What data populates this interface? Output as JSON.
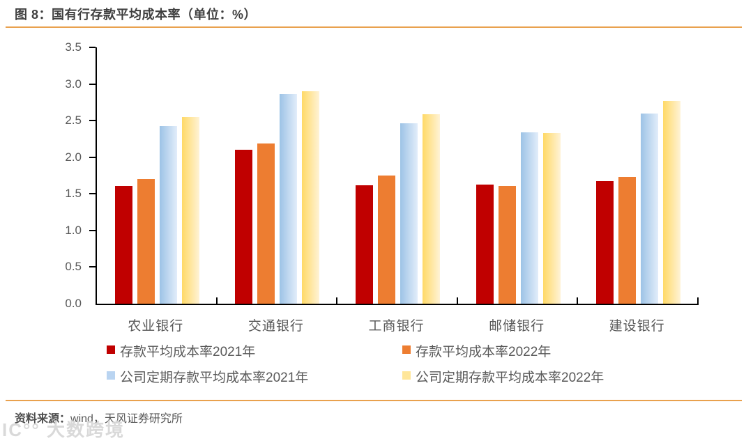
{
  "title": "图 8：国有行存款平均成本率（单位：%）",
  "footer": {
    "source_label": "资料来源：",
    "source_text": "wind，天风证券研究所"
  },
  "watermark": {
    "text": "IC°° 大数跨境"
  },
  "colors": {
    "accent_rule": "#E9A14E",
    "axis_line": "#000000",
    "tick_label": "#595959",
    "title_text": "#3F3F3F"
  },
  "chart_data": {
    "type": "bar",
    "title": "图 8：国有行存款平均成本率（单位：%）",
    "categories": [
      "农业银行",
      "交通银行",
      "工商银行",
      "邮储银行",
      "建设银行"
    ],
    "series": [
      {
        "name": "存款平均成本率2021年",
        "color_start": "#C00000",
        "color_end": "#C00000",
        "swatch": "#C00000",
        "values": [
          1.61,
          2.1,
          1.62,
          1.63,
          1.67
        ]
      },
      {
        "name": "存款平均成本率2022年",
        "color_start": "#ED7D31",
        "color_end": "#ED7D31",
        "swatch": "#ED7D31",
        "values": [
          1.7,
          2.19,
          1.75,
          1.61,
          1.73
        ]
      },
      {
        "name": "公司定期存款平均成本率2021年",
        "color_start": "#9DC3E6",
        "color_end": "#E2EDFA",
        "swatch": "#B9D4F1",
        "values": [
          2.43,
          2.86,
          2.46,
          2.34,
          2.6
        ]
      },
      {
        "name": "公司定期存款平均成本率2022年",
        "color_start": "#FFD966",
        "color_end": "#FFF3D6",
        "swatch": "#FFE699",
        "values": [
          2.55,
          2.9,
          2.59,
          2.33,
          2.77
        ]
      }
    ],
    "xlabel": "",
    "ylabel": "",
    "ylim": [
      0,
      3.5
    ],
    "ytick_step": 0.5,
    "ytick_labels": [
      "0.0",
      "0.5",
      "1.0",
      "1.5",
      "2.0",
      "2.5",
      "3.0",
      "3.5"
    ],
    "grid": false,
    "legend_position": "bottom"
  }
}
